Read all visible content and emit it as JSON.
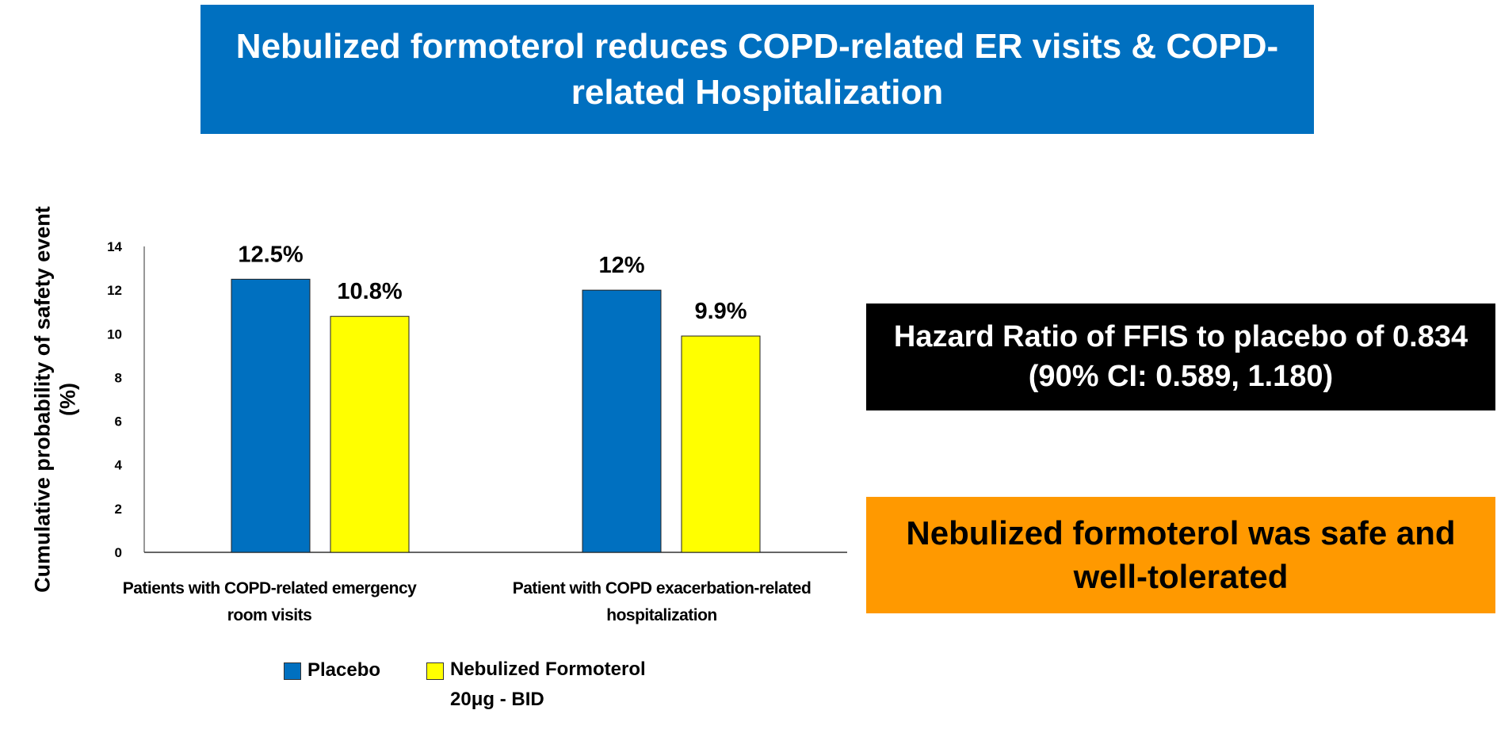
{
  "title": "Nebulized formoterol reduces COPD-related ER visits & COPD-related Hospitalization",
  "hazard_text": "Hazard Ratio of FFIS to placebo of 0.834 (90% CI: 0.589, 1.180)",
  "safety_text": "Nebulized formoterol was safe and well-tolerated",
  "chart_data": {
    "type": "bar",
    "ylabel": "Cumulative probability of safety event (%)",
    "ylim": [
      0,
      14
    ],
    "yticks": [
      "0",
      "2",
      "4",
      "6",
      "8",
      "10",
      "12",
      "14"
    ],
    "categories": [
      "Patients with COPD-related emergency room visits",
      "Patient with COPD exacerbation-related hospitalization"
    ],
    "series": [
      {
        "name": "Placebo",
        "color": "#0070c0",
        "values": [
          12.5,
          12
        ],
        "labels": [
          "12.5%",
          "12%"
        ]
      },
      {
        "name": "Nebulized Formoterol 20μg - BID",
        "color": "#ffff00",
        "values": [
          10.8,
          9.9
        ],
        "labels": [
          "10.8%",
          "9.9%"
        ]
      }
    ],
    "legend": {
      "position": "bottom",
      "items": [
        "Placebo",
        "Nebulized Formoterol",
        "20μg - BID"
      ]
    }
  }
}
